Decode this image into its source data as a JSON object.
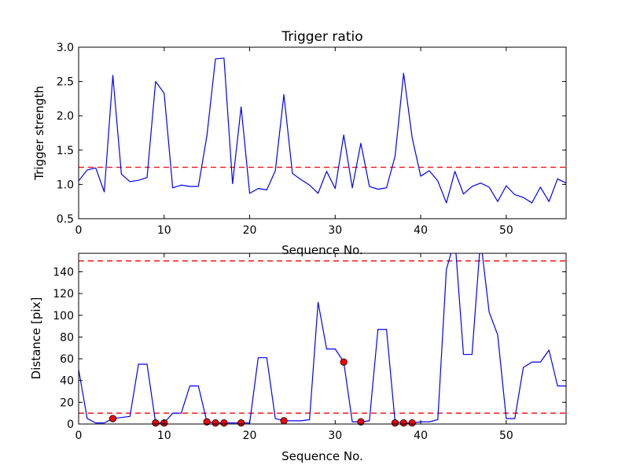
{
  "figure": {
    "background": "#ffffff"
  },
  "chart_data": [
    {
      "type": "line",
      "title": "Trigger ratio",
      "xlabel": "Sequence No.",
      "ylabel": "Trigger strength",
      "xlim": [
        0,
        57
      ],
      "ylim": [
        0.5,
        3.0
      ],
      "xticks": [
        0,
        10,
        20,
        30,
        40,
        50
      ],
      "xtick_labels": [
        "0",
        "10",
        "20",
        "30",
        "40",
        "50"
      ],
      "yticks": [
        0.5,
        1.0,
        1.5,
        2.0,
        2.5,
        3.0
      ],
      "ytick_labels": [
        "0.5",
        "1.0",
        "1.5",
        "2.0",
        "2.5",
        "3.0"
      ],
      "grid": false,
      "series": [
        {
          "color": "#0000ff",
          "x": [
            0,
            1,
            2,
            3,
            4,
            5,
            6,
            7,
            8,
            9,
            10,
            11,
            12,
            13,
            14,
            15,
            16,
            17,
            18,
            19,
            20,
            21,
            22,
            23,
            24,
            25,
            26,
            27,
            28,
            29,
            30,
            31,
            32,
            33,
            34,
            35,
            36,
            37,
            38,
            39,
            40,
            41,
            42,
            43,
            44,
            45,
            46,
            47,
            48,
            49,
            50,
            51,
            52,
            53,
            54,
            55,
            56,
            57
          ],
          "y": [
            1.05,
            1.21,
            1.24,
            0.89,
            2.59,
            1.15,
            1.04,
            1.06,
            1.1,
            2.5,
            2.33,
            0.95,
            0.99,
            0.97,
            0.97,
            1.71,
            2.83,
            2.84,
            1.01,
            2.13,
            0.87,
            0.94,
            0.92,
            1.2,
            2.31,
            1.16,
            1.07,
            0.99,
            0.87,
            1.19,
            0.94,
            1.72,
            0.95,
            1.6,
            0.97,
            0.93,
            0.95,
            1.41,
            2.62,
            1.68,
            1.12,
            1.2,
            1.05,
            0.73,
            1.19,
            0.86,
            0.97,
            1.02,
            0.96,
            0.75,
            0.98,
            0.85,
            0.81,
            0.73,
            0.96,
            0.75,
            1.08,
            1.02
          ]
        }
      ],
      "reference_lines": [
        {
          "y": 1.25,
          "color": "#ff0000",
          "style": "dashed"
        }
      ]
    },
    {
      "type": "line",
      "title": "",
      "xlabel": "Sequence No.",
      "ylabel": "Distance [pix]",
      "xlim": [
        0,
        57
      ],
      "ylim": [
        0,
        157
      ],
      "xticks": [
        0,
        10,
        20,
        30,
        40,
        50
      ],
      "xtick_labels": [
        "0",
        "10",
        "20",
        "30",
        "40",
        "50"
      ],
      "yticks": [
        0,
        20,
        40,
        60,
        80,
        100,
        120,
        140
      ],
      "ytick_labels": [
        "0",
        "20",
        "40",
        "60",
        "80",
        "100",
        "120",
        "140"
      ],
      "grid": false,
      "series": [
        {
          "color": "#0000ff",
          "x": [
            0,
            1,
            2,
            3,
            4,
            5,
            6,
            7,
            8,
            9,
            10,
            11,
            12,
            13,
            14,
            15,
            16,
            17,
            18,
            19,
            20,
            21,
            22,
            23,
            24,
            25,
            26,
            27,
            28,
            29,
            30,
            31,
            32,
            33,
            34,
            35,
            36,
            37,
            38,
            39,
            40,
            41,
            42,
            43,
            44,
            45,
            46,
            47,
            48,
            49,
            50,
            51,
            52,
            53,
            54,
            55,
            56,
            57
          ],
          "y": [
            50,
            5,
            1,
            1,
            5,
            6,
            7,
            55,
            55,
            1,
            1,
            10,
            10,
            35,
            35,
            2,
            1,
            1,
            1,
            1,
            1,
            61,
            61,
            5,
            3,
            3,
            3,
            4,
            112,
            69,
            69,
            57,
            2,
            2,
            3,
            87,
            87,
            2,
            1,
            1,
            2,
            2,
            4,
            142,
            170,
            64,
            64,
            170,
            103,
            82,
            5,
            5,
            52,
            57,
            57,
            68,
            35,
            35
          ]
        }
      ],
      "markers": {
        "color": "#ff0000",
        "x": [
          4,
          9,
          10,
          15,
          16,
          17,
          19,
          24,
          31,
          33,
          37,
          38,
          39
        ],
        "y": [
          5,
          1,
          1,
          2,
          1,
          1,
          1,
          3,
          57,
          2,
          1,
          1,
          1
        ]
      },
      "reference_lines": [
        {
          "y": 10,
          "color": "#ff0000",
          "style": "dashed"
        },
        {
          "y": 150,
          "color": "#ff0000",
          "style": "dashed"
        }
      ]
    }
  ]
}
